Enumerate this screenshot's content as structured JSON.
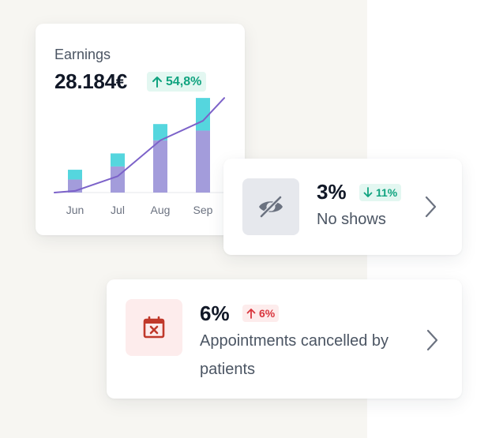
{
  "earnings": {
    "title": "Earnings",
    "value": "28.184€",
    "change": "54,8%",
    "change_direction": "up",
    "change_icon": "arrow-up-icon"
  },
  "chart_data": {
    "type": "bar",
    "categories": [
      "Jun",
      "Jul",
      "Aug",
      "Sep"
    ],
    "series": [
      {
        "values": [
          4,
          8,
          16,
          19
        ],
        "color": "#a39cdb"
      },
      {
        "values": [
          3,
          4,
          5,
          10
        ],
        "color": "#55d6de"
      }
    ],
    "line": {
      "x": [
        0,
        1,
        2,
        3,
        3.5
      ],
      "values": [
        0.5,
        5,
        16,
        22,
        29
      ],
      "color": "#7c62c9"
    },
    "ylim": [
      0,
      30
    ],
    "stacked": true,
    "grid": false,
    "legend": "none"
  },
  "no_shows": {
    "value": "3%",
    "change": "11%",
    "change_direction": "down",
    "label": "No shows",
    "icon": "eye-off-icon",
    "chevron_icon": "chevron-right-icon",
    "colors": {
      "icon": "#6b7280",
      "badge_text": "#10a37f",
      "badge_bg": "#e3f7f1"
    }
  },
  "appointments_cancelled": {
    "value": "6%",
    "change": "6%",
    "change_direction": "up",
    "label": "Appointments cancelled by patients",
    "icon": "calendar-cancel-icon",
    "chevron_icon": "chevron-right-icon",
    "colors": {
      "icon": "#c0392b",
      "badge_text": "#d9363e",
      "badge_bg": "#fdecec"
    }
  }
}
